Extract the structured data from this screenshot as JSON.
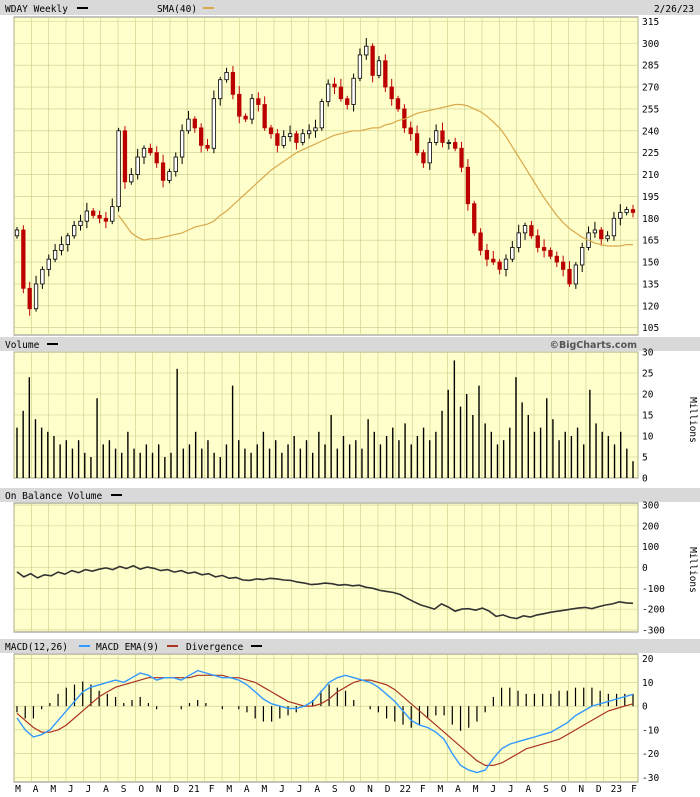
{
  "header": {
    "symbol_label": "WDAY Weekly",
    "sma_label": "SMA(40)",
    "date_label": "2/26/23"
  },
  "volume_panel": {
    "label": "Volume",
    "unit_label": "Millions",
    "brand": "©BigCharts.com"
  },
  "obv_panel": {
    "label": "On Balance Volume",
    "unit_label": "Millions"
  },
  "macd_panel": {
    "label": "MACD(12,26)",
    "ema_label": "MACD EMA(9)",
    "div_label": "Divergence"
  },
  "colors": {
    "background": "#ffffcc",
    "grid": "#c8cc88",
    "up": "#000000",
    "down": "#bb0000",
    "sma": "#d9a84a",
    "macd": "#3399ff",
    "ema": "#aa3322",
    "obv": "#333333"
  },
  "chart_data": [
    {
      "type": "candlestick",
      "title": "WDAY Weekly",
      "x_tick_labels": [
        "M",
        "A",
        "M",
        "J",
        "J",
        "A",
        "S",
        "O",
        "N",
        "D",
        "21",
        "F",
        "M",
        "A",
        "M",
        "J",
        "J",
        "A",
        "S",
        "O",
        "N",
        "D",
        "22",
        "F",
        "M",
        "A",
        "M",
        "J",
        "J",
        "A",
        "S",
        "O",
        "N",
        "D",
        "23",
        "F"
      ],
      "y_ticks": [
        105,
        120,
        135,
        150,
        165,
        180,
        195,
        210,
        225,
        240,
        255,
        270,
        285,
        300,
        315
      ],
      "ylim": [
        100,
        318
      ],
      "series": [
        {
          "name": "WDAY Weekly",
          "close": [
            172,
            132,
            118,
            135,
            145,
            152,
            158,
            162,
            168,
            175,
            178,
            185,
            182,
            180,
            178,
            188,
            240,
            205,
            210,
            222,
            228,
            225,
            218,
            206,
            212,
            222,
            240,
            248,
            242,
            230,
            228,
            262,
            275,
            280,
            265,
            250,
            248,
            262,
            258,
            242,
            238,
            230,
            236,
            238,
            232,
            238,
            240,
            242,
            260,
            272,
            270,
            262,
            258,
            276,
            292,
            298,
            278,
            288,
            270,
            262,
            255,
            242,
            238,
            225,
            218,
            232,
            240,
            232,
            232,
            228,
            215,
            190,
            170,
            158,
            152,
            150,
            145,
            152,
            160,
            170,
            175,
            168,
            160,
            158,
            154,
            150,
            145,
            135,
            148,
            160,
            170,
            172,
            166,
            168,
            180,
            184,
            186,
            184
          ]
        },
        {
          "name": "SMA(40)",
          "values": [
            182,
            176,
            170,
            167,
            165,
            166,
            166,
            167,
            168,
            169,
            170,
            172,
            174,
            175,
            176,
            178,
            182,
            185,
            189,
            193,
            197,
            201,
            205,
            209,
            213,
            216,
            219,
            222,
            225,
            227,
            229,
            231,
            233,
            235,
            237,
            238,
            239,
            240,
            240,
            241,
            242,
            242,
            244,
            245,
            247,
            248,
            250,
            252,
            253,
            254,
            255,
            256,
            257,
            258,
            258,
            257,
            255,
            253,
            250,
            246,
            242,
            236,
            229,
            222,
            215,
            208,
            201,
            194,
            188,
            182,
            177,
            173,
            170,
            167,
            165,
            163,
            162,
            161,
            161,
            161,
            162,
            162
          ]
        }
      ]
    },
    {
      "type": "bar",
      "title": "Volume",
      "ylabel": "Millions",
      "y_ticks": [
        0,
        5,
        10,
        15,
        20,
        25,
        30
      ],
      "ylim": [
        0,
        30
      ],
      "values": [
        12,
        16,
        24,
        14,
        12,
        11,
        10,
        8,
        9,
        7,
        9,
        6,
        5,
        19,
        8,
        9,
        7,
        6,
        11,
        7,
        6,
        8,
        6,
        8,
        5,
        6,
        26,
        7,
        8,
        11,
        7,
        9,
        6,
        5,
        8,
        22,
        9,
        7,
        6,
        8,
        11,
        7,
        9,
        6,
        8,
        10,
        7,
        9,
        6,
        11,
        8,
        15,
        7,
        10,
        8,
        9,
        7,
        14,
        11,
        8,
        10,
        12,
        9,
        13,
        8,
        10,
        12,
        9,
        11,
        16,
        21,
        28,
        17,
        20,
        15,
        22,
        13,
        11,
        8,
        9,
        12,
        24,
        18,
        15,
        11,
        12,
        19,
        14,
        9,
        11,
        10,
        12,
        8,
        21,
        13,
        11,
        10,
        8,
        11,
        7,
        4
      ]
    },
    {
      "type": "line",
      "title": "On Balance Volume",
      "ylabel": "Millions",
      "y_ticks": [
        -300,
        -200,
        -100,
        0,
        100,
        200,
        300
      ],
      "ylim": [
        -310,
        310
      ],
      "series": [
        {
          "name": "On Balance Volume",
          "values": [
            -20,
            -45,
            -30,
            -50,
            -35,
            -40,
            -22,
            -32,
            -15,
            -25,
            -10,
            -18,
            -8,
            -2,
            -10,
            5,
            -5,
            8,
            -8,
            2,
            -4,
            -15,
            -10,
            -22,
            -15,
            -28,
            -22,
            -35,
            -30,
            -45,
            -38,
            -52,
            -48,
            -60,
            -62,
            -55,
            -58,
            -52,
            -55,
            -60,
            -62,
            -70,
            -75,
            -82,
            -80,
            -75,
            -78,
            -85,
            -82,
            -88,
            -85,
            -95,
            -100,
            -110,
            -115,
            -120,
            -130,
            -148,
            -165,
            -180,
            -190,
            -200,
            -175,
            -190,
            -210,
            -200,
            -198,
            -205,
            -195,
            -210,
            -235,
            -228,
            -240,
            -245,
            -232,
            -238,
            -228,
            -222,
            -215,
            -210,
            -205,
            -200,
            -195,
            -192,
            -198,
            -188,
            -180,
            -175,
            -165,
            -170,
            -172
          ]
        }
      ]
    },
    {
      "type": "line",
      "title": "MACD(12,26)",
      "y_ticks": [
        -30,
        -20,
        -10,
        0,
        10,
        20
      ],
      "ylim": [
        -32,
        22
      ],
      "series": [
        {
          "name": "MACD(12,26)",
          "values": [
            -5,
            -10,
            -13,
            -12,
            -10,
            -6,
            -2,
            2,
            6,
            8,
            9,
            10,
            11,
            10,
            12,
            14,
            13,
            11,
            12,
            12,
            11,
            13,
            15,
            14,
            13,
            12,
            12,
            11,
            9,
            6,
            3,
            1,
            0,
            -1,
            -1,
            0,
            2,
            6,
            10,
            12,
            13,
            12,
            11,
            10,
            8,
            5,
            2,
            -2,
            -6,
            -8,
            -9,
            -11,
            -14,
            -20,
            -25,
            -27,
            -28,
            -27,
            -22,
            -18,
            -16,
            -15,
            -14,
            -13,
            -12,
            -11,
            -9,
            -7,
            -4,
            -2,
            0,
            1,
            2,
            3,
            4,
            5
          ]
        },
        {
          "name": "MACD EMA(9)",
          "values": [
            -3,
            -6,
            -9,
            -11,
            -11,
            -10,
            -8,
            -5,
            -2,
            1,
            4,
            6,
            8,
            9,
            10,
            11,
            12,
            12,
            12,
            12,
            12,
            12,
            13,
            13,
            13,
            13,
            12,
            12,
            11,
            10,
            8,
            6,
            4,
            2,
            1,
            0,
            0,
            1,
            3,
            6,
            8,
            10,
            11,
            11,
            10,
            9,
            7,
            4,
            1,
            -2,
            -5,
            -8,
            -11,
            -14,
            -17,
            -20,
            -23,
            -25,
            -25,
            -24,
            -22,
            -20,
            -18,
            -17,
            -16,
            -15,
            -14,
            -12,
            -10,
            -8,
            -6,
            -4,
            -2,
            -1,
            0,
            1
          ]
        }
      ]
    }
  ]
}
